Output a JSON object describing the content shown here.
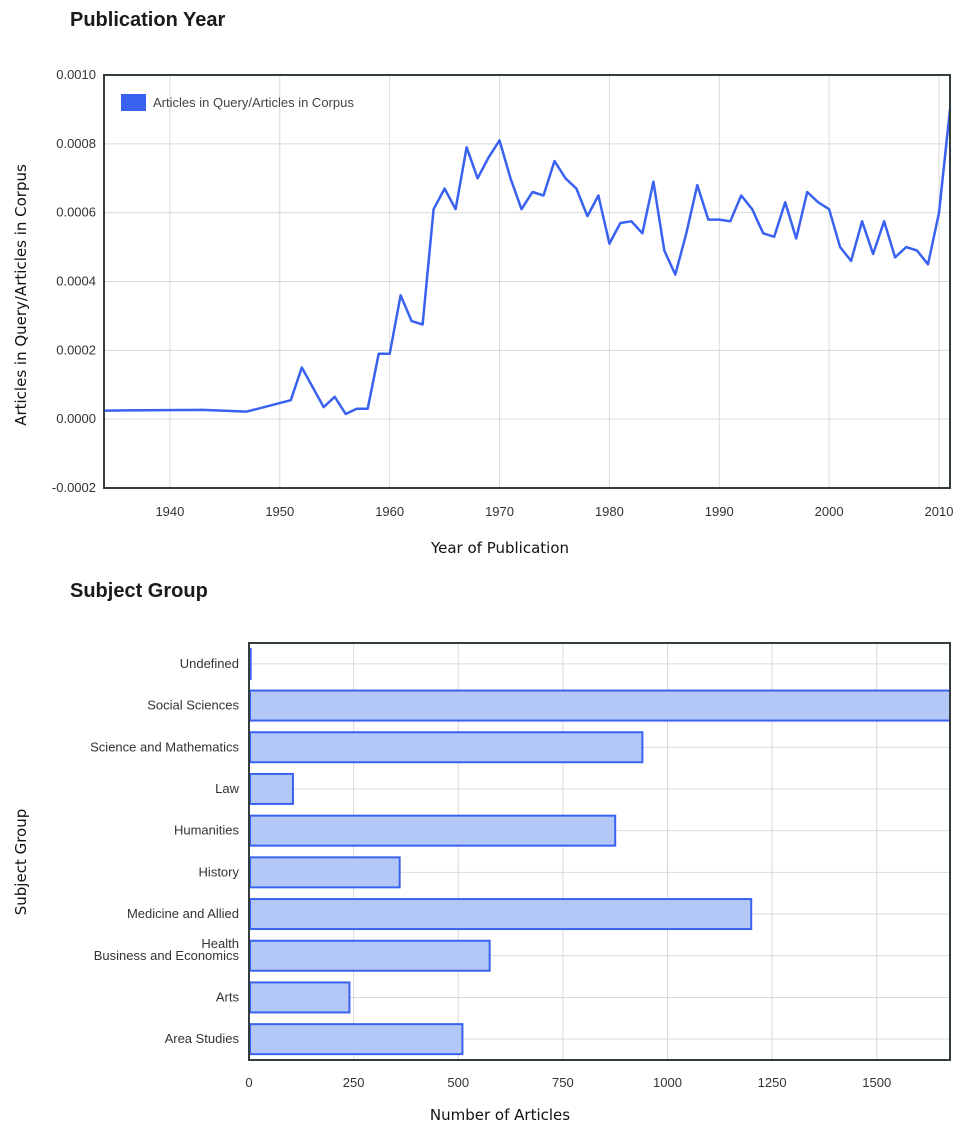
{
  "sections": {
    "publication_year_title": "Publication Year",
    "subject_group_title": "Subject Group"
  },
  "colors": {
    "line": "#3a62f0",
    "bar_fill": "#b3c8f7",
    "bar_stroke": "#3a62f0",
    "grid": "#d9d9d9",
    "frame": "#333d3d"
  },
  "chart_data": [
    {
      "type": "line",
      "title": "Publication Year",
      "xlabel": "Year of Publication",
      "ylabel": "Articles in Query/Articles in Corpus",
      "xlim": [
        1934,
        2011
      ],
      "ylim": [
        -0.0002,
        0.001
      ],
      "xticks": [
        1940,
        1950,
        1960,
        1970,
        1980,
        1990,
        2000,
        2010
      ],
      "xtick_labels": [
        "1940",
        "1950",
        "1960",
        "1970",
        "1980",
        "1990",
        "2000",
        "2010"
      ],
      "yticks": [
        -0.0002,
        0,
        0.0002,
        0.0004,
        0.0006,
        0.0008,
        0.001
      ],
      "ytick_labels": [
        "-0.0002",
        "0.0000",
        "0.0002",
        "0.0004",
        "0.0006",
        "0.0008",
        "0.0010"
      ],
      "grid": true,
      "legend": "top-left",
      "series": [
        {
          "name": "Articles in Query/Articles in Corpus",
          "x": [
            1934,
            1943,
            1947,
            1951,
            1952,
            1954,
            1955,
            1956,
            1957,
            1958,
            1959,
            1960,
            1961,
            1962,
            1963,
            1964,
            1965,
            1966,
            1967,
            1968,
            1969,
            1970,
            1971,
            1972,
            1973,
            1974,
            1975,
            1976,
            1977,
            1978,
            1979,
            1980,
            1981,
            1982,
            1983,
            1984,
            1985,
            1986,
            1987,
            1988,
            1989,
            1990,
            1991,
            1992,
            1993,
            1994,
            1995,
            1996,
            1997,
            1998,
            1999,
            2000,
            2001,
            2002,
            2003,
            2004,
            2005,
            2006,
            2007,
            2008,
            2009,
            2010,
            2011
          ],
          "values": [
            2.5e-05,
            2.7e-05,
            2.2e-05,
            5.5e-05,
            0.00015,
            3.5e-05,
            6.5e-05,
            1.5e-05,
            3e-05,
            3e-05,
            0.00019,
            0.00019,
            0.00036,
            0.000285,
            0.000275,
            0.00061,
            0.00067,
            0.00061,
            0.00079,
            0.0007,
            0.00076,
            0.00081,
            0.0007,
            0.00061,
            0.00066,
            0.00065,
            0.00075,
            0.0007,
            0.00067,
            0.00059,
            0.00065,
            0.00051,
            0.00057,
            0.000575,
            0.00054,
            0.00069,
            0.00049,
            0.00042,
            0.00054,
            0.00068,
            0.00058,
            0.00058,
            0.000575,
            0.00065,
            0.00061,
            0.00054,
            0.00053,
            0.00063,
            0.000525,
            0.00066,
            0.00063,
            0.00061,
            0.0005,
            0.00046,
            0.000575,
            0.00048,
            0.000575,
            0.00047,
            0.0005,
            0.00049,
            0.00045,
            0.0006,
            0.0009
          ]
        }
      ]
    },
    {
      "type": "bar",
      "orientation": "horizontal",
      "title": "Subject Group",
      "xlabel": "Number of Articles",
      "ylabel": "Subject Group",
      "xlim": [
        0,
        1675
      ],
      "xticks": [
        0,
        250,
        500,
        750,
        1000,
        1250,
        1500
      ],
      "xtick_labels": [
        "0",
        "250",
        "500",
        "750",
        "1000",
        "1250",
        "1500"
      ],
      "grid": true,
      "categories": [
        "Undefined",
        "Social Sciences",
        "Science and Mathematics",
        "Law",
        "Humanities",
        "History",
        "Medicine and Allied Health",
        "Business and Economics",
        "Arts",
        "Area Studies"
      ],
      "category_lines": [
        [
          "Undefined"
        ],
        [
          "Social Sciences"
        ],
        [
          "Science and Mathematics"
        ],
        [
          "Law"
        ],
        [
          "Humanities"
        ],
        [
          "History"
        ],
        [
          "Medicine and Allied",
          "Health"
        ],
        [
          "Business and Economics"
        ],
        [
          "Arts"
        ],
        [
          "Area Studies"
        ]
      ],
      "values": [
        4,
        1675,
        940,
        105,
        875,
        360,
        1200,
        575,
        240,
        510
      ]
    }
  ]
}
